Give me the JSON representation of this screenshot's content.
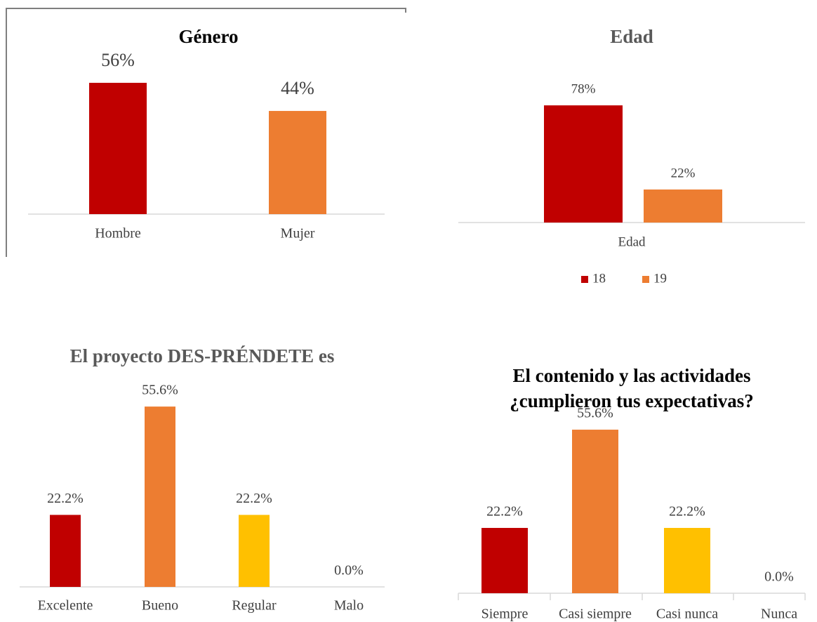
{
  "chart_data": [
    {
      "type": "bar",
      "title": "Género",
      "title_color": "#000000",
      "categories": [
        "Hombre",
        "Mujer"
      ],
      "values": [
        56,
        44
      ],
      "value_labels": [
        "56%",
        "44%"
      ],
      "colors": [
        "#c00000",
        "#ed7d31"
      ]
    },
    {
      "type": "bar",
      "title": "Edad",
      "title_color": "#595959",
      "categories": [
        "Edad"
      ],
      "series": [
        {
          "name": "18",
          "color": "#c00000",
          "values": [
            78
          ],
          "value_labels": [
            "78%"
          ]
        },
        {
          "name": "19",
          "color": "#ed7d31",
          "values": [
            22
          ],
          "value_labels": [
            "22%"
          ]
        }
      ],
      "legend": "bottom"
    },
    {
      "type": "bar",
      "title": "El proyecto DES-PRÉNDETE es",
      "title_color": "#595959",
      "categories": [
        "Excelente",
        "Bueno",
        "Regular",
        "Malo"
      ],
      "values": [
        22.2,
        55.6,
        22.2,
        0
      ],
      "value_labels": [
        "22.2%",
        "55.6%",
        "22.2%",
        "0.0%"
      ],
      "colors": [
        "#c00000",
        "#ed7d31",
        "#ffc000"
      ]
    },
    {
      "type": "bar",
      "title": [
        "El contenido y las actividades",
        "¿cumplieron tus expectativas?"
      ],
      "title_color": "#000000",
      "categories": [
        "Siempre",
        "Casi siempre",
        "Casi nunca",
        "Nunca"
      ],
      "values": [
        22.2,
        55.6,
        22.2,
        0
      ],
      "value_labels": [
        "22.2%",
        "55.6%",
        "22.2%",
        "0.0%"
      ],
      "colors": [
        "#c00000",
        "#ed7d31",
        "#ffc000"
      ]
    }
  ]
}
